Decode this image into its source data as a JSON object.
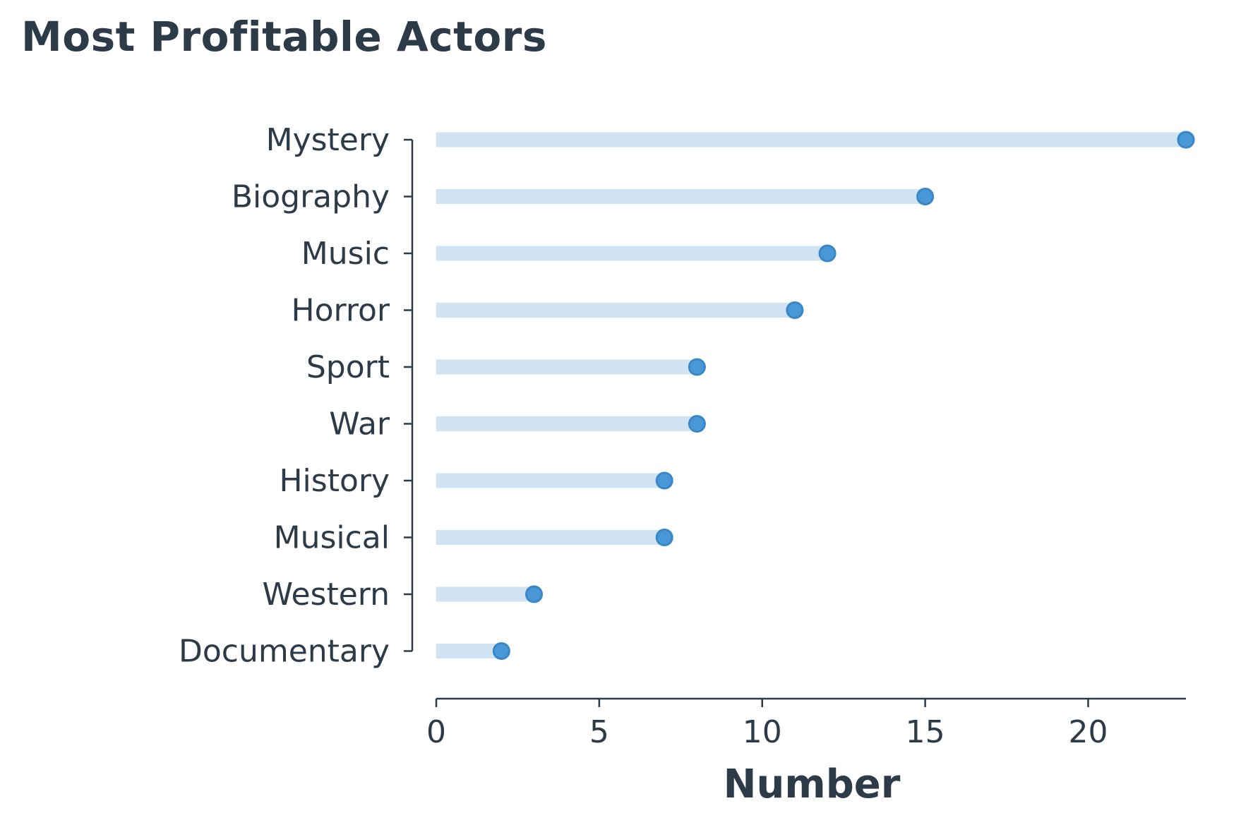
{
  "chart_data": {
    "type": "lollipop",
    "title": "Most Profitable Actors",
    "xlabel": "Number",
    "ylabel": "",
    "categories": [
      "Mystery",
      "Biography",
      "Music",
      "Horror",
      "Sport",
      "War",
      "History",
      "Musical",
      "Western",
      "Documentary"
    ],
    "values": [
      23,
      15,
      12,
      11,
      8,
      8,
      7,
      7,
      3,
      2
    ],
    "xlim": [
      0,
      23
    ],
    "xticks": [
      0,
      5,
      10,
      15,
      20
    ],
    "grid": false,
    "orientation": "horizontal",
    "colors": {
      "stem": "#cfe3f3",
      "dot_fill": "#4a97d6",
      "dot_edge": "#3a87c8",
      "text": "#2d3a48",
      "axis": "#2d3a48"
    }
  }
}
